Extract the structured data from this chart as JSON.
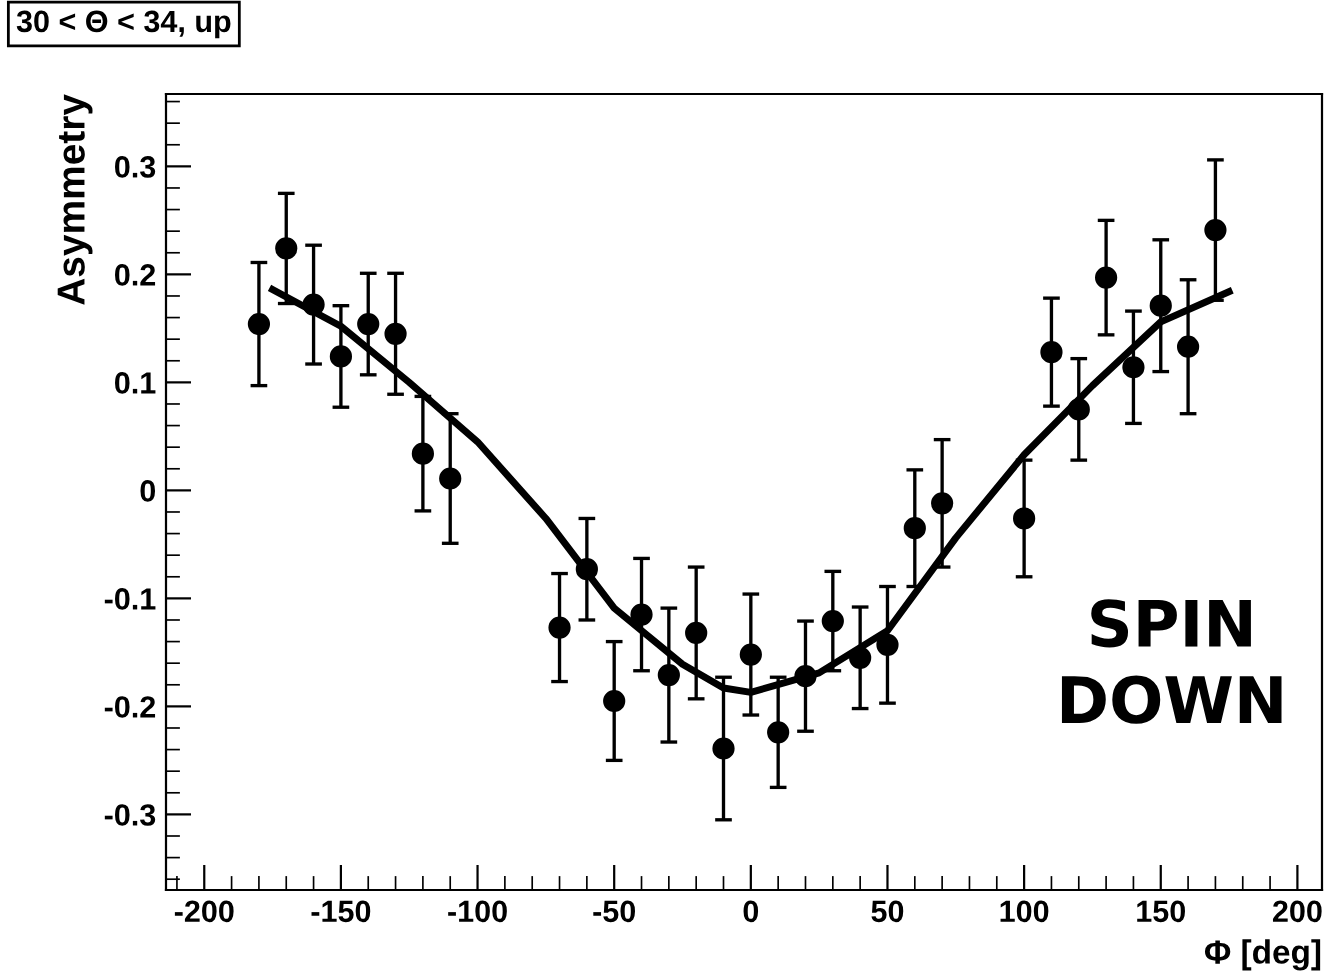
{
  "chart_data": {
    "type": "scatter",
    "title": "30 < Θ < 34, up",
    "xlabel": "Φ [deg]",
    "ylabel": "Asymmetry",
    "annotations": [
      "SPIN\nDOWN"
    ],
    "xlim": [
      -214,
      209
    ],
    "ylim": [
      -0.37,
      0.367
    ],
    "xticks": [
      -200,
      -150,
      -100,
      -50,
      0,
      50,
      100,
      150,
      200
    ],
    "yticks": [
      -0.3,
      -0.2,
      -0.1,
      0,
      0.1,
      0.2,
      0.3
    ],
    "grid": false,
    "legend": false,
    "series": [
      {
        "color": "#000000",
        "marker": "circle",
        "x": [
          -180,
          -170,
          -160,
          -150,
          -140,
          -130,
          -120,
          -110,
          -70,
          -60,
          -50,
          -40,
          -30,
          -20,
          -10,
          0,
          10,
          20,
          30,
          40,
          50,
          60,
          70,
          100,
          110,
          120,
          130,
          140,
          150,
          160,
          170
        ],
        "values": [
          0.154,
          0.224,
          0.172,
          0.124,
          0.154,
          0.145,
          0.034,
          0.011,
          -0.127,
          -0.073,
          -0.195,
          -0.115,
          -0.171,
          -0.132,
          -0.239,
          -0.152,
          -0.224,
          -0.172,
          -0.121,
          -0.155,
          -0.143,
          -0.035,
          -0.012,
          -0.026,
          0.128,
          0.075,
          0.197,
          0.114,
          0.171,
          0.133,
          0.241
        ],
        "errors": [
          0.057,
          0.051,
          0.055,
          0.047,
          0.047,
          0.056,
          0.053,
          0.06,
          0.05,
          0.047,
          0.055,
          0.052,
          0.062,
          0.061,
          0.066,
          0.056,
          0.051,
          0.051,
          0.046,
          0.047,
          0.054,
          0.054,
          0.059,
          0.054,
          0.05,
          0.047,
          0.053,
          0.052,
          0.061,
          0.062,
          0.065
        ]
      },
      {
        "type": "line",
        "color": "#000000",
        "marker": "none",
        "line_style": "solid",
        "x": [
          -175,
          -150,
          -125,
          -100,
          -75,
          -50,
          -25,
          -10,
          0,
          25,
          50,
          75,
          100,
          125,
          150,
          175
        ],
        "values": [
          0.186,
          0.152,
          0.1,
          0.045,
          -0.026,
          -0.109,
          -0.161,
          -0.183,
          -0.187,
          -0.169,
          -0.13,
          -0.044,
          0.033,
          0.097,
          0.156,
          0.184
        ]
      }
    ]
  }
}
